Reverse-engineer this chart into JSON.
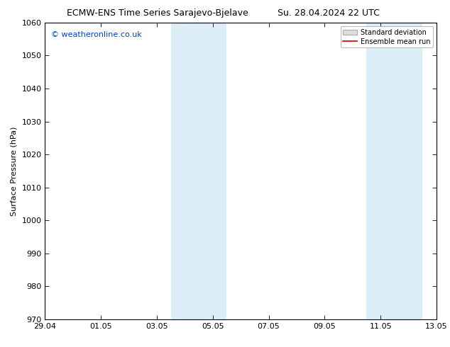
{
  "title_left": "ECMW-ENS Time Series Sarajevo-Bjelave",
  "title_right": "Su. 28.04.2024 22 UTC",
  "ylabel": "Surface Pressure (hPa)",
  "ylim": [
    970,
    1060
  ],
  "yticks": [
    970,
    980,
    990,
    1000,
    1010,
    1020,
    1030,
    1040,
    1050,
    1060
  ],
  "x_start_days": 0,
  "x_end_days": 14,
  "x_tick_labels": [
    "29.04",
    "01.05",
    "03.05",
    "05.05",
    "07.05",
    "09.05",
    "11.05",
    "13.05"
  ],
  "x_tick_positions": [
    0,
    2,
    4,
    6,
    8,
    10,
    12,
    14
  ],
  "shaded_bands": [
    {
      "x_start": 4.5,
      "x_end": 5.5
    },
    {
      "x_start": 5.5,
      "x_end": 6.5
    },
    {
      "x_start": 11.5,
      "x_end": 12.5
    },
    {
      "x_start": 12.5,
      "x_end": 13.5
    }
  ],
  "shade_color": "#dceef8",
  "watermark_text": "© weatheronline.co.uk",
  "watermark_color": "#0044bb",
  "legend_std_label": "Standard deviation",
  "legend_mean_label": "Ensemble mean run",
  "legend_std_facecolor": "#dddddd",
  "legend_std_edgecolor": "#999999",
  "legend_mean_color": "#cc0000",
  "background_color": "#ffffff",
  "axis_color": "#000000",
  "title_fontsize": 9,
  "label_fontsize": 8,
  "tick_fontsize": 8,
  "watermark_fontsize": 8,
  "legend_fontsize": 7
}
